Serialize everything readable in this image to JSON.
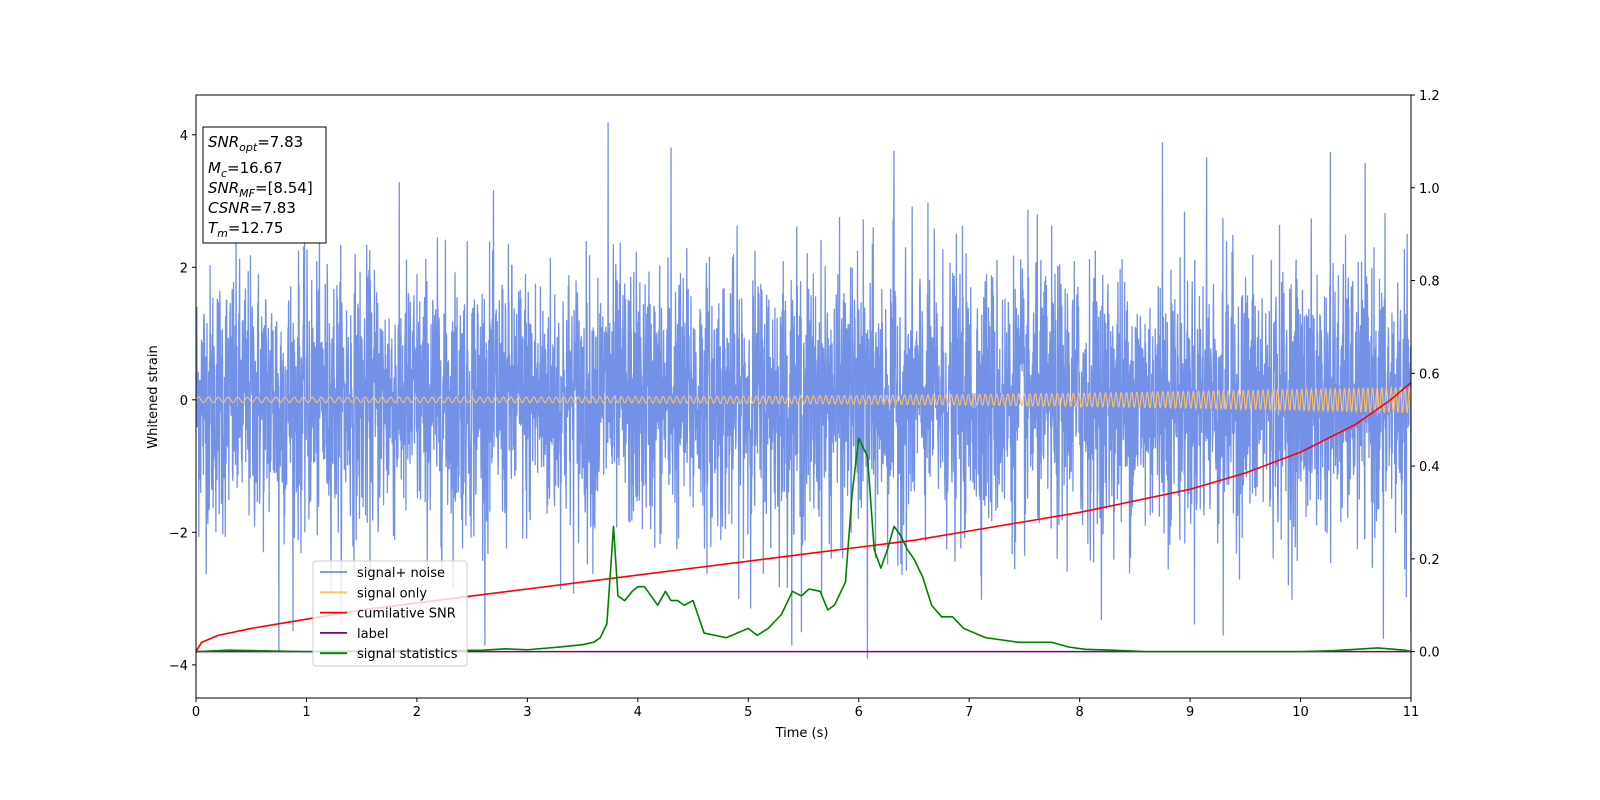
{
  "chart_data": {
    "type": "line",
    "xlabel": "Time (s)",
    "ylabel": "Whitened strain",
    "xlim": [
      0,
      11
    ],
    "ylim": [
      -4.5,
      4.6
    ],
    "y2lim": [
      -0.1,
      1.2
    ],
    "x_ticks": [
      "0",
      "1",
      "2",
      "3",
      "4",
      "5",
      "6",
      "7",
      "8",
      "9",
      "10",
      "11"
    ],
    "y_ticks": [
      "4",
      "2",
      "0",
      "−2",
      "−4"
    ],
    "y2_ticks": [
      "1.2",
      "1.0",
      "0.8",
      "0.6",
      "0.4",
      "0.2",
      "0.0"
    ],
    "grid": false,
    "legend_position": "lower-left",
    "info_box": {
      "lines": [
        {
          "sym": "SNR",
          "sub": "opt",
          "value": "=7.83"
        },
        {
          "sym": "M",
          "sub": "c",
          "value": "=16.67"
        },
        {
          "sym": "SNR",
          "sub": "MF",
          "value": "=[8.54]"
        },
        {
          "sym": "CSNR",
          "sub": "",
          "value": "=7.83"
        },
        {
          "sym": "T",
          "sub": "m",
          "value": "=12.75"
        }
      ]
    },
    "series": [
      {
        "name": "signal+ noise",
        "axis": "left",
        "color": "#7391e6",
        "style": "noise",
        "std": 1.0,
        "peaks": [
          [
            0.75,
            -3.8
          ],
          [
            3.73,
            4.18
          ],
          [
            4.3,
            3.8
          ],
          [
            5.48,
            -3.5
          ],
          [
            6.08,
            -3.9
          ],
          [
            6.32,
            3.75
          ],
          [
            8.75,
            3.88
          ],
          [
            9.15,
            3.65
          ],
          [
            9.3,
            -3.55
          ],
          [
            10.27,
            3.73
          ],
          [
            10.75,
            -3.6
          ],
          [
            11.0,
            -3.5
          ]
        ]
      },
      {
        "name": "signal only",
        "axis": "left",
        "color": "#fdc06b",
        "style": "chirp",
        "amp_start": 0.04,
        "amp_end": 0.2
      },
      {
        "name": "cumilative SNR",
        "axis": "right",
        "color": "#ff0000",
        "x": [
          0.0,
          0.05,
          0.2,
          0.5,
          1.0,
          1.5,
          2.0,
          2.5,
          3.0,
          3.5,
          4.0,
          4.5,
          5.0,
          5.5,
          6.0,
          6.5,
          7.0,
          7.5,
          8.0,
          8.5,
          9.0,
          9.5,
          10.0,
          10.5,
          10.8,
          11.0
        ],
        "y": [
          0.0,
          0.02,
          0.035,
          0.05,
          0.07,
          0.09,
          0.105,
          0.12,
          0.135,
          0.15,
          0.165,
          0.18,
          0.195,
          0.21,
          0.225,
          0.24,
          0.26,
          0.28,
          0.3,
          0.325,
          0.35,
          0.385,
          0.43,
          0.49,
          0.54,
          0.58
        ]
      },
      {
        "name": "label",
        "axis": "right",
        "color": "#800080",
        "x": [
          0,
          11
        ],
        "y": [
          0.0,
          0.0
        ]
      },
      {
        "name": "signal statistics",
        "axis": "right",
        "color": "#008000",
        "x": [
          0.0,
          0.3,
          1.0,
          2.0,
          2.6,
          2.8,
          3.0,
          3.3,
          3.5,
          3.6,
          3.66,
          3.72,
          3.78,
          3.82,
          3.88,
          3.95,
          4.0,
          4.06,
          4.12,
          4.18,
          4.25,
          4.3,
          4.36,
          4.42,
          4.5,
          4.6,
          4.8,
          5.0,
          5.08,
          5.18,
          5.3,
          5.4,
          5.48,
          5.55,
          5.65,
          5.72,
          5.78,
          5.88,
          5.94,
          6.0,
          6.08,
          6.14,
          6.2,
          6.26,
          6.32,
          6.38,
          6.44,
          6.5,
          6.58,
          6.66,
          6.75,
          6.85,
          6.95,
          7.05,
          7.15,
          7.3,
          7.45,
          7.6,
          7.75,
          7.9,
          8.05,
          8.3,
          8.6,
          9.0,
          9.5,
          10.0,
          10.3,
          10.5,
          10.7,
          10.85,
          10.95,
          11.0
        ],
        "y": [
          0.0,
          0.003,
          0.0,
          0.002,
          0.003,
          0.006,
          0.004,
          0.01,
          0.015,
          0.02,
          0.03,
          0.06,
          0.27,
          0.12,
          0.11,
          0.13,
          0.14,
          0.14,
          0.12,
          0.1,
          0.13,
          0.11,
          0.11,
          0.1,
          0.11,
          0.04,
          0.03,
          0.05,
          0.035,
          0.05,
          0.08,
          0.13,
          0.12,
          0.135,
          0.13,
          0.09,
          0.1,
          0.15,
          0.34,
          0.46,
          0.42,
          0.22,
          0.18,
          0.22,
          0.27,
          0.25,
          0.22,
          0.2,
          0.16,
          0.1,
          0.075,
          0.075,
          0.05,
          0.04,
          0.03,
          0.025,
          0.02,
          0.02,
          0.02,
          0.01,
          0.005,
          0.003,
          0.0,
          0.0,
          0.0,
          0.0,
          0.002,
          0.005,
          0.008,
          0.005,
          0.003,
          0.0
        ]
      }
    ]
  }
}
